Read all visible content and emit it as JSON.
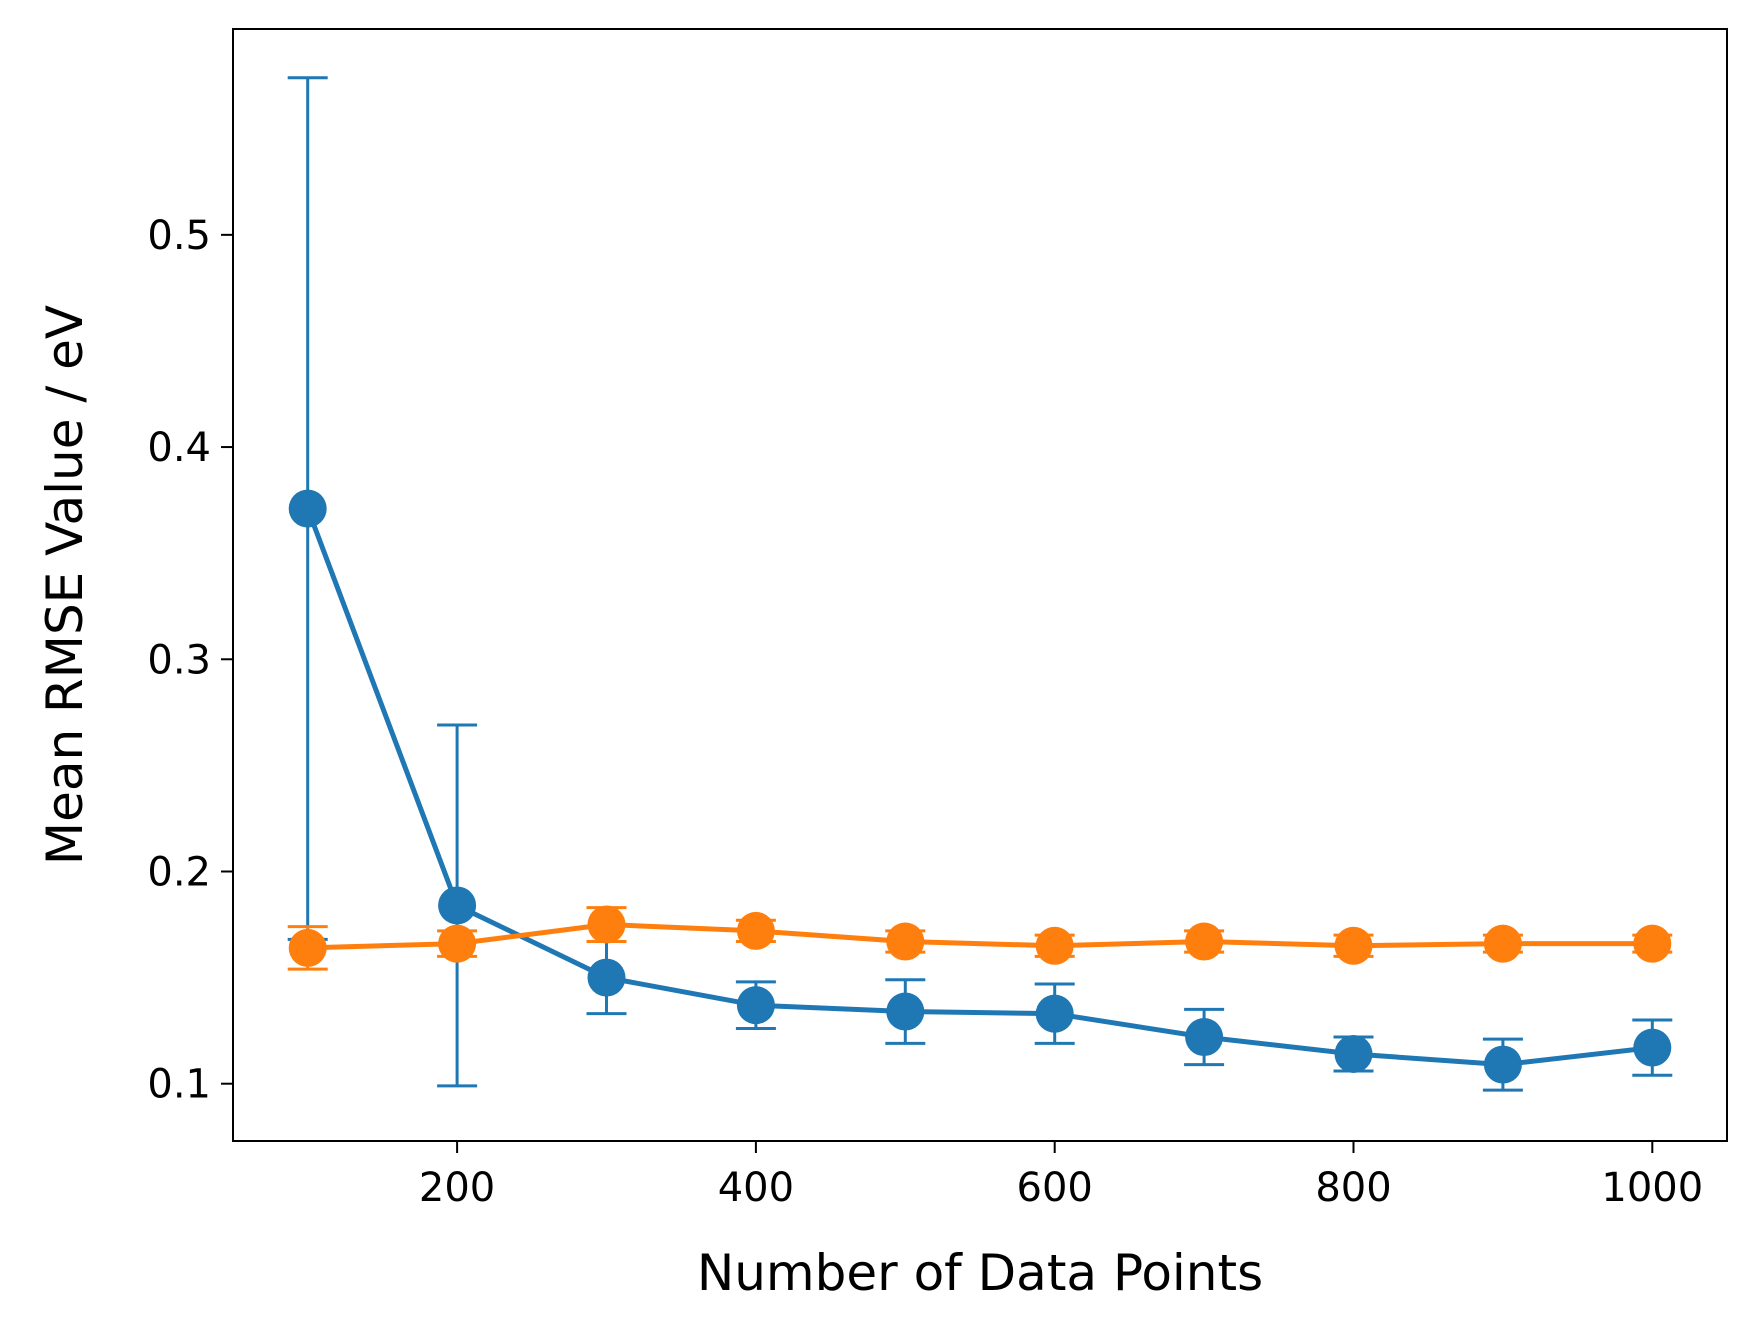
{
  "chart_data": {
    "type": "line",
    "title": "",
    "xlabel": "Number of Data Points",
    "ylabel": "Mean RMSE Value / eV",
    "xlim": [
      50,
      1050
    ],
    "ylim": [
      0.073,
      0.597
    ],
    "xticks": [
      200,
      400,
      600,
      800,
      1000
    ],
    "yticks": [
      0.1,
      0.2,
      0.3,
      0.4,
      0.5
    ],
    "xtick_labels": [
      "200",
      "400",
      "600",
      "800",
      "1000"
    ],
    "ytick_labels": [
      "0.1",
      "0.2",
      "0.3",
      "0.4",
      "0.5"
    ],
    "grid": false,
    "legend": "none",
    "x": [
      100,
      200,
      300,
      400,
      500,
      600,
      700,
      800,
      900,
      1000
    ],
    "series": [
      {
        "color": "#1f77b4",
        "values": [
          0.371,
          0.184,
          0.15,
          0.137,
          0.134,
          0.133,
          0.122,
          0.114,
          0.109,
          0.117
        ],
        "errors": [
          0.203,
          0.085,
          0.017,
          0.011,
          0.015,
          0.014,
          0.013,
          0.008,
          0.012,
          0.013
        ]
      },
      {
        "color": "#ff7f0e",
        "values": [
          0.164,
          0.166,
          0.175,
          0.172,
          0.167,
          0.165,
          0.167,
          0.165,
          0.166,
          0.166
        ],
        "errors": [
          0.01,
          0.006,
          0.008,
          0.005,
          0.005,
          0.005,
          0.005,
          0.005,
          0.004,
          0.004
        ]
      }
    ]
  }
}
